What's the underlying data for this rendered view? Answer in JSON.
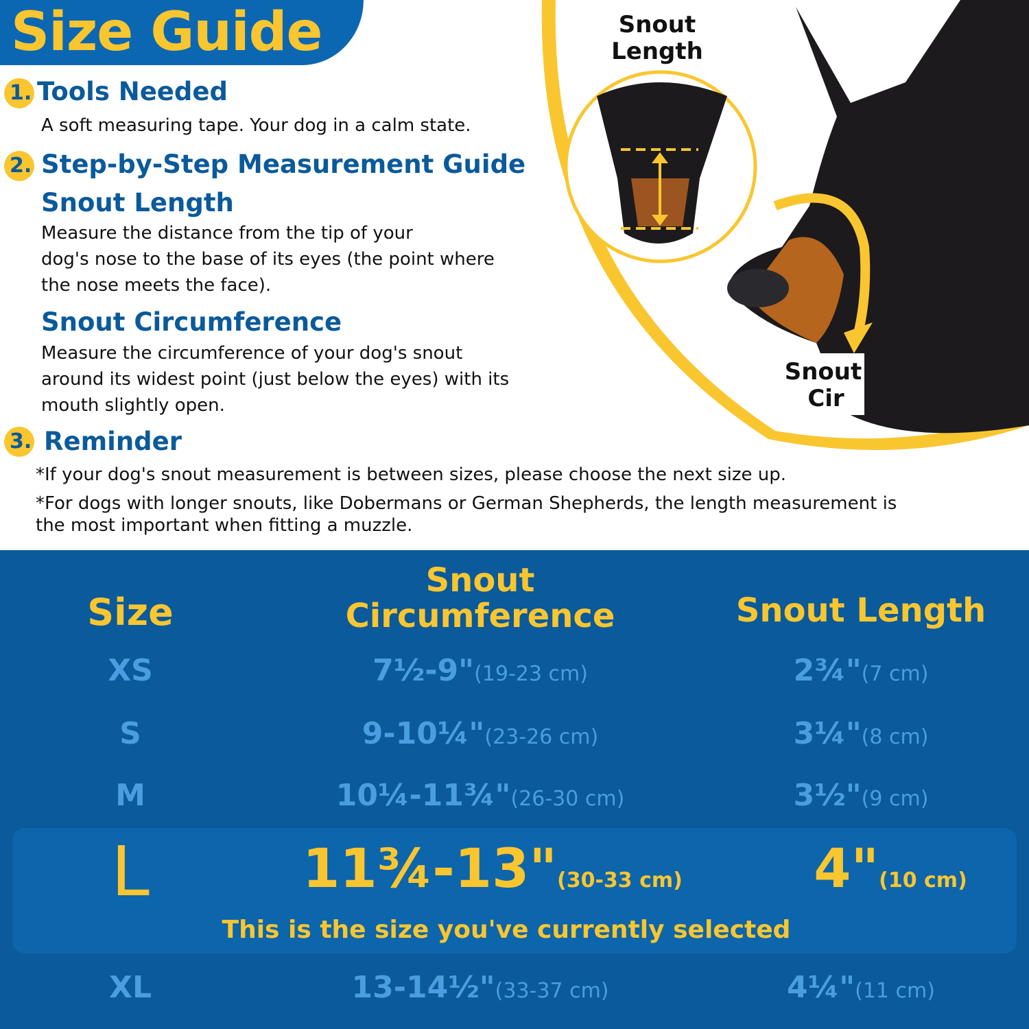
{
  "title": "Size Guide",
  "sections": [
    {
      "num": "1.",
      "heading": "Tools Needed",
      "text": "A soft measuring tape. Your dog in a calm state."
    },
    {
      "num": "2.",
      "heading": "Step-by-Step Measurement Guide"
    },
    {
      "num": "3.",
      "heading": "Reminder"
    }
  ],
  "snout_length": {
    "heading": "Snout Length",
    "text": [
      "Measure the distance from the tip of your",
      "dog's nose to the base of its eyes (the point where",
      "the nose meets the face)."
    ]
  },
  "snout_circ": {
    "heading": "Snout Circumference",
    "text": [
      "Measure the circumference of your dog's snout",
      "around its widest point (just below the eyes) with its",
      "mouth slightly open."
    ]
  },
  "reminders": [
    "*If your dog's snout measurement is between sizes, please choose the next size up.",
    "*For dogs with longer snouts, like Dobermans or German Shepherds, the length measurement is",
    "the most important when fitting a muzzle."
  ],
  "art_labels": {
    "length_1": "Snout",
    "length_2": "Length",
    "cir_1": "Snout",
    "cir_2": "Cir"
  },
  "table": {
    "headers": {
      "size": "Size",
      "circ_1": "Snout",
      "circ_2": "Circumference",
      "length": "Snout Length"
    },
    "rows": [
      {
        "size": "XS",
        "circ": "7½-9\"",
        "circ_cm": "(19-23 cm)",
        "len": "2¾\"",
        "len_cm": "(7 cm)"
      },
      {
        "size": "S",
        "circ": "9-10¼\"",
        "circ_cm": "(23-26 cm)",
        "len": "3¼\"",
        "len_cm": "(8 cm)"
      },
      {
        "size": "M",
        "circ": "10¼-11¾\"",
        "circ_cm": "(26-30 cm)",
        "len": "3½\"",
        "len_cm": "(9 cm)"
      },
      {
        "size": "L",
        "circ": "11¾-13\"",
        "circ_cm": "(30-33 cm)",
        "len": "4\"",
        "len_cm": "(10 cm)",
        "selected": true
      },
      {
        "size": "XL",
        "circ": "13-14½\"",
        "circ_cm": "(33-37 cm)",
        "len": "4¼\"",
        "len_cm": "(11 cm)"
      }
    ],
    "selected_note": "This is the size you've currently selected"
  },
  "colors": {
    "blue": "#0a5a9c",
    "yellow": "#f9c630",
    "light_blue": "#4a9ee0",
    "heading_blue": "#0b5a9a"
  }
}
